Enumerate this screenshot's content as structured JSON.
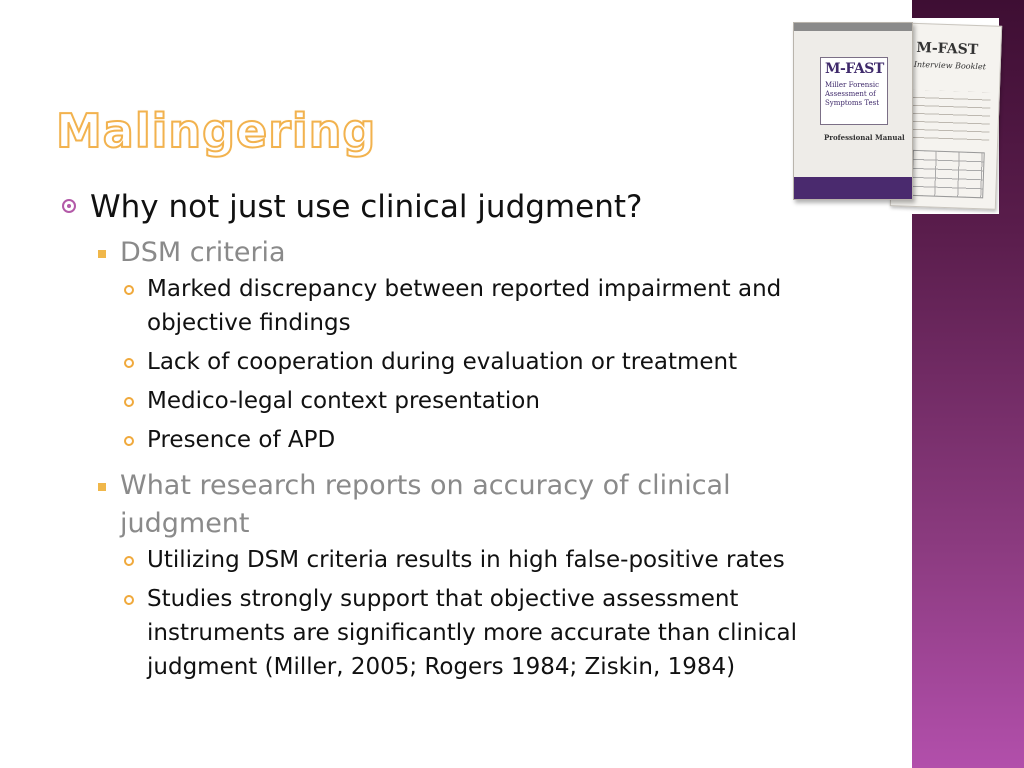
{
  "slide": {
    "title": "Malingering",
    "bullets": [
      {
        "text": "Why not just use clinical judgment?",
        "children": [
          {
            "text": "DSM criteria",
            "children": [
              "Marked discrepancy between reported impairment and objective findings",
              "Lack of cooperation during evaluation or treatment",
              "Medico-legal context presentation",
              "Presence of APD"
            ]
          },
          {
            "text": "What research reports on accuracy of clinical judgment",
            "children": [
              "Utilizing DSM criteria results in high false-positive rates",
              "Studies strongly support that objective assessment instruments are significantly more accurate than clinical judgment (Miller, 2005; Rogers 1984; Ziskin, 1984)"
            ]
          }
        ]
      }
    ]
  },
  "image": {
    "front_logo": "M-FAST",
    "front_subtitle": "Miller Forensic Assessment of Symptoms Test",
    "front_manual": "Professional Manual",
    "back_logo": "M-FAST",
    "back_subtitle": "Interview Booklet"
  },
  "colors": {
    "sidebar_top": "#3e0e33",
    "sidebar_bottom": "#b24fab",
    "title_outline": "#f2b24e",
    "bullet_l1": "#b35aa8",
    "bullet_l2": "#f0b74a",
    "bullet_l3": "#f0a93c"
  }
}
